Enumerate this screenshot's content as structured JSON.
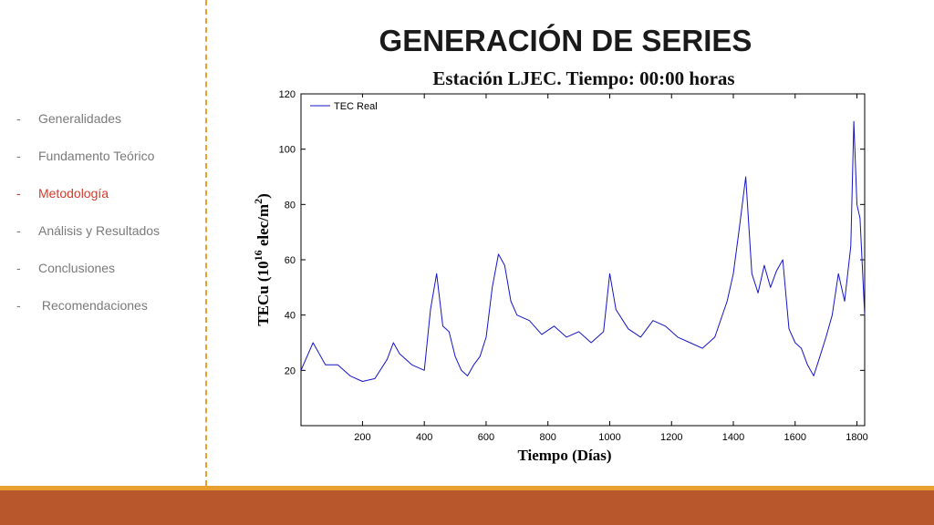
{
  "slide": {
    "title": "GENERACIÓN DE SERIES",
    "accent_color": "#e8a030",
    "footer_color": "#b8562c"
  },
  "sidebar": {
    "items": [
      {
        "dash": "-",
        "label": "Generalidades",
        "active": false
      },
      {
        "dash": "-",
        "label": "Fundamento Teórico",
        "active": false
      },
      {
        "dash": "-",
        "label": "Metodología",
        "active": true
      },
      {
        "dash": "-",
        "label": "Análisis y Resultados",
        "active": false
      },
      {
        "dash": "-",
        "label": "Conclusiones",
        "active": false
      },
      {
        "dash": "-",
        "label": " Recomendaciones",
        "active": false
      }
    ],
    "active_color": "#d63a2a"
  },
  "chart_data": {
    "type": "line",
    "title": "Estación LJEC. Tiempo: 00:00 horas",
    "xlabel": "Tiempo (Días)",
    "ylabel": "TECu (10^16 elec/m^2)",
    "xlim": [
      1,
      1825
    ],
    "ylim": [
      0,
      120
    ],
    "xticks": [
      200,
      400,
      600,
      800,
      1000,
      1200,
      1400,
      1600,
      1800
    ],
    "yticks": [
      20,
      40,
      60,
      80,
      100,
      120
    ],
    "grid": false,
    "legend_position": "top-left",
    "series": [
      {
        "name": "TEC Real",
        "color": "#1414c8",
        "x": [
          1,
          40,
          80,
          120,
          160,
          200,
          240,
          280,
          300,
          320,
          360,
          400,
          420,
          440,
          460,
          480,
          500,
          520,
          540,
          560,
          580,
          600,
          620,
          640,
          660,
          680,
          700,
          740,
          780,
          820,
          860,
          900,
          940,
          980,
          1000,
          1020,
          1060,
          1100,
          1140,
          1180,
          1220,
          1260,
          1300,
          1340,
          1380,
          1400,
          1420,
          1440,
          1460,
          1480,
          1500,
          1520,
          1540,
          1560,
          1580,
          1600,
          1620,
          1640,
          1660,
          1680,
          1700,
          1720,
          1740,
          1760,
          1780,
          1790,
          1800,
          1810,
          1825
        ],
        "y": [
          20,
          30,
          22,
          22,
          18,
          16,
          17,
          24,
          30,
          26,
          22,
          20,
          42,
          55,
          36,
          34,
          25,
          20,
          18,
          22,
          25,
          32,
          50,
          62,
          58,
          45,
          40,
          38,
          33,
          36,
          32,
          34,
          30,
          34,
          55,
          42,
          35,
          32,
          38,
          36,
          32,
          30,
          28,
          32,
          45,
          55,
          72,
          90,
          55,
          48,
          58,
          50,
          56,
          60,
          35,
          30,
          28,
          22,
          18,
          25,
          32,
          40,
          55,
          45,
          65,
          110,
          80,
          75,
          40
        ]
      }
    ]
  }
}
